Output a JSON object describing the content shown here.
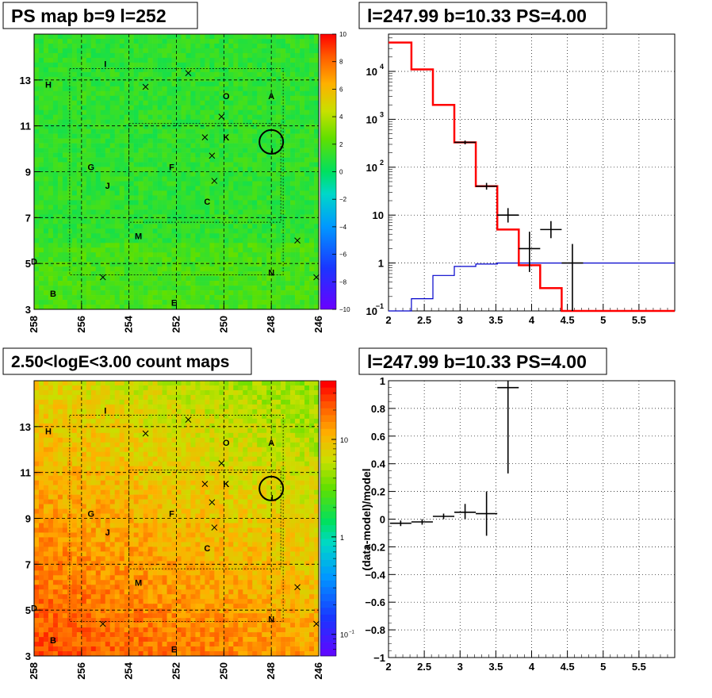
{
  "panels": {
    "ps_map": {
      "title": "PS map b=9 l=252",
      "x_ticks": [
        "258",
        "256",
        "254",
        "252",
        "250",
        "248",
        "246"
      ],
      "y_ticks": [
        "3",
        "5",
        "7",
        "9",
        "11",
        "13"
      ],
      "colorbar_ticks": [
        "10",
        "8",
        "6",
        "4",
        "2",
        "0",
        "−2",
        "−4",
        "−6",
        "−8",
        "−10"
      ]
    },
    "spectrum": {
      "title": "l=247.99 b=10.33 PS=4.00",
      "x_ticks": [
        "2",
        "2.5",
        "3",
        "3.5",
        "4",
        "4.5",
        "5",
        "5.5"
      ],
      "y_ticks_exp": [
        "4",
        "3",
        "2"
      ],
      "y_ticks_plain": [
        "10",
        "1"
      ],
      "y_tick_base": "10",
      "y_tick_bottom": "10",
      "y_tick_bottom_exp": "−1"
    },
    "count_map": {
      "title": "2.50<logE<3.00 count maps",
      "x_ticks": [
        "258",
        "256",
        "254",
        "252",
        "250",
        "248",
        "246"
      ],
      "y_ticks": [
        "3",
        "5",
        "7",
        "9",
        "11",
        "13"
      ],
      "colorbar_ticks": [
        "10",
        "1"
      ],
      "colorbar_bottom": "10",
      "colorbar_bottom_exp": "−1"
    },
    "residual": {
      "title": "l=247.99 b=10.33 PS=4.00",
      "ylabel": "(data-model)/model",
      "x_ticks": [
        "2",
        "2.5",
        "3",
        "3.5",
        "4",
        "4.5",
        "5",
        "5.5"
      ],
      "y_ticks": [
        "1",
        "0.8",
        "0.6",
        "0.4",
        "0.2",
        "0",
        "−0.2",
        "−0.4",
        "−0.6",
        "−0.8",
        "−1"
      ]
    }
  },
  "colors": {
    "model_total": "#ff0000",
    "model_bkg": "#0000cc",
    "data": "#000000"
  },
  "sources": [
    {
      "label": "I",
      "l": 255.0,
      "b": 13.7
    },
    {
      "label": "H",
      "l": 257.4,
      "b": 12.8
    },
    {
      "label": "O",
      "l": 249.9,
      "b": 12.3
    },
    {
      "label": "A",
      "l": 248.0,
      "b": 12.3
    },
    {
      "label": "K",
      "l": 249.9,
      "b": 10.5
    },
    {
      "label": "G",
      "l": 255.6,
      "b": 9.2
    },
    {
      "label": "F",
      "l": 252.2,
      "b": 9.2
    },
    {
      "label": "J",
      "l": 254.9,
      "b": 8.4
    },
    {
      "label": "C",
      "l": 250.7,
      "b": 7.7
    },
    {
      "label": "M",
      "l": 253.6,
      "b": 6.2
    },
    {
      "label": "D",
      "l": 258.0,
      "b": 5.1
    },
    {
      "label": "N",
      "l": 248.0,
      "b": 4.6
    },
    {
      "label": "B",
      "l": 257.2,
      "b": 3.7
    },
    {
      "label": "E",
      "l": 252.1,
      "b": 3.3
    },
    {
      "label": "L",
      "l": 247.9,
      "b": 9.9
    }
  ],
  "crosses": [
    {
      "l": 251.5,
      "b": 13.3
    },
    {
      "l": 253.3,
      "b": 12.7
    },
    {
      "l": 250.1,
      "b": 11.4
    },
    {
      "l": 250.8,
      "b": 10.5
    },
    {
      "l": 250.5,
      "b": 9.7
    },
    {
      "l": 250.4,
      "b": 8.6
    },
    {
      "l": 246.9,
      "b": 6.0
    },
    {
      "l": 255.1,
      "b": 4.4
    },
    {
      "l": 246.1,
      "b": 4.4
    }
  ],
  "highlight": {
    "l": 248.0,
    "b": 10.3
  },
  "chart_data": [
    {
      "type": "heatmap",
      "title": "PS map b=9 l=252",
      "xlabel": "",
      "ylabel": "",
      "xlim": [
        258,
        246
      ],
      "ylim": [
        3,
        15
      ],
      "zlim": [
        -10,
        10
      ]
    },
    {
      "type": "line",
      "title": "l=247.99 b=10.33 PS=4.00",
      "xlabel": "",
      "ylabel": "",
      "xlim": [
        2,
        6
      ],
      "ylim": [
        0.1,
        60000
      ],
      "yscale": "log",
      "grid": true,
      "series": [
        {
          "role": "model_total",
          "style": "step",
          "edges": [
            2.0,
            2.32,
            2.62,
            2.92,
            3.22,
            3.52,
            3.82,
            4.12,
            4.42,
            6.0
          ],
          "values": [
            40000,
            11000,
            2000,
            330,
            40,
            5,
            0.9,
            0.3,
            0.1
          ]
        },
        {
          "role": "model_background",
          "style": "step",
          "edges": [
            2.0,
            2.32,
            2.62,
            2.92,
            3.22,
            3.52,
            3.82,
            4.12,
            4.42,
            6.0
          ],
          "values": [
            0.1,
            0.18,
            0.55,
            0.85,
            0.95,
            1.0,
            1.0,
            1.0,
            1.0
          ]
        },
        {
          "role": "data",
          "style": "errorbars",
          "points": [
            {
              "x": 3.07,
              "y": 330,
              "xerr": 0.15,
              "ylo": 300,
              "yhi": 360
            },
            {
              "x": 3.37,
              "y": 40,
              "xerr": 0.15,
              "ylo": 34,
              "yhi": 47
            },
            {
              "x": 3.67,
              "y": 10,
              "xerr": 0.15,
              "ylo": 7,
              "yhi": 14
            },
            {
              "x": 3.97,
              "y": 2,
              "xerr": 0.15,
              "ylo": 0.65,
              "yhi": 4.5
            },
            {
              "x": 4.27,
              "y": 5,
              "xerr": 0.15,
              "ylo": 3.3,
              "yhi": 7.5
            },
            {
              "x": 4.57,
              "y": 1,
              "xerr": 0.15,
              "ylo": 0.1,
              "yhi": 2.5
            }
          ]
        }
      ]
    },
    {
      "type": "heatmap",
      "title": "2.50<logE<3.00 count maps",
      "xlim": [
        258,
        246
      ],
      "ylim": [
        3,
        15
      ],
      "zlim": [
        0.06,
        40
      ],
      "zscale": "log"
    },
    {
      "type": "scatter",
      "title": "l=247.99 b=10.33 PS=4.00",
      "ylabel": "(data-model)/model",
      "xlim": [
        2,
        6
      ],
      "ylim": [
        -1,
        1
      ],
      "grid": true,
      "points": [
        {
          "x": 2.17,
          "y": -0.03,
          "xerr": 0.15,
          "ylo": -0.05,
          "yhi": -0.01
        },
        {
          "x": 2.47,
          "y": -0.02,
          "xerr": 0.15,
          "ylo": -0.04,
          "yhi": 0.0
        },
        {
          "x": 2.77,
          "y": 0.02,
          "xerr": 0.15,
          "ylo": 0.0,
          "yhi": 0.04
        },
        {
          "x": 3.07,
          "y": 0.05,
          "xerr": 0.15,
          "ylo": 0.0,
          "yhi": 0.11
        },
        {
          "x": 3.37,
          "y": 0.04,
          "xerr": 0.15,
          "ylo": -0.12,
          "yhi": 0.2
        },
        {
          "x": 3.67,
          "y": 0.95,
          "xerr": 0.15,
          "ylo": 0.33,
          "yhi": 1.0
        }
      ]
    }
  ]
}
